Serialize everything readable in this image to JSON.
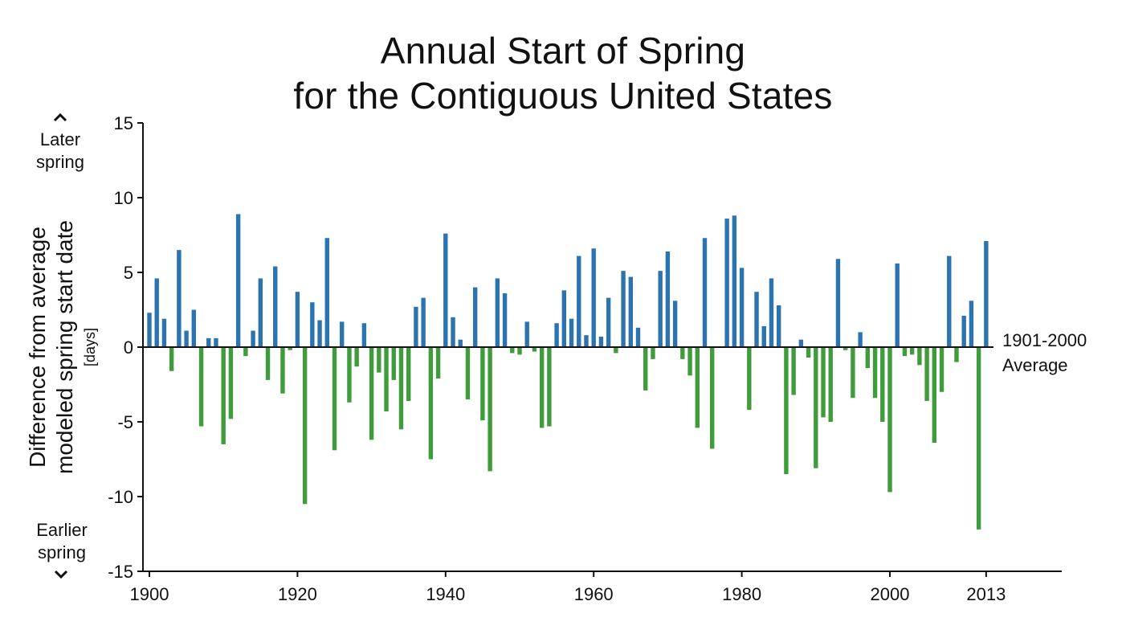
{
  "chart_data": {
    "type": "bar",
    "title_line1": "Annual Start of Spring",
    "title_line2": "for the Contiguous United States",
    "ylabel_line1": "Difference from average",
    "ylabel_line2": "modeled spring start date",
    "yunit": "[days]",
    "later_label_line1": "Later",
    "later_label_line2": "spring",
    "earlier_label_line1": "Earlier",
    "earlier_label_line2": "spring",
    "baseline_label_line1": "1901-2000",
    "baseline_label_line2": "Average",
    "ylim": [
      -15,
      15
    ],
    "xlim": [
      1900,
      2023
    ],
    "y_ticks": [
      15,
      10,
      5,
      0,
      -5,
      -10,
      -15
    ],
    "y_tick_labels": [
      "15",
      "10",
      "5",
      "0",
      "-5",
      "-10",
      "-15"
    ],
    "x_ticks": [
      1900,
      1920,
      1940,
      1960,
      1980,
      2000,
      2013
    ],
    "x_tick_labels": [
      "1900",
      "1920",
      "1940",
      "1960",
      "1980",
      "2000",
      "2013"
    ],
    "colors": {
      "later": "#2b74b0",
      "earlier": "#3f9c3a"
    },
    "grid": false,
    "x": [
      1900,
      1901,
      1902,
      1903,
      1904,
      1905,
      1906,
      1907,
      1908,
      1909,
      1910,
      1911,
      1912,
      1913,
      1914,
      1915,
      1916,
      1917,
      1918,
      1919,
      1920,
      1921,
      1922,
      1923,
      1924,
      1925,
      1926,
      1927,
      1928,
      1929,
      1930,
      1931,
      1932,
      1933,
      1934,
      1935,
      1936,
      1937,
      1938,
      1939,
      1940,
      1941,
      1942,
      1943,
      1944,
      1945,
      1946,
      1947,
      1948,
      1949,
      1950,
      1951,
      1952,
      1953,
      1954,
      1955,
      1956,
      1957,
      1958,
      1959,
      1960,
      1961,
      1962,
      1963,
      1964,
      1965,
      1966,
      1967,
      1968,
      1969,
      1970,
      1971,
      1972,
      1973,
      1974,
      1975,
      1976,
      1977,
      1978,
      1979,
      1980,
      1981,
      1982,
      1983,
      1984,
      1985,
      1986,
      1987,
      1988,
      1989,
      1990,
      1991,
      1992,
      1993,
      1994,
      1995,
      1996,
      1997,
      1998,
      1999,
      2000,
      2001,
      2002,
      2003,
      2004,
      2005,
      2006,
      2007,
      2008,
      2009,
      2010,
      2011,
      2012,
      2013
    ],
    "values": [
      2.3,
      4.6,
      1.9,
      -1.6,
      6.5,
      1.1,
      2.5,
      -5.3,
      0.6,
      0.6,
      -6.5,
      -4.8,
      8.9,
      -0.6,
      1.1,
      4.6,
      -2.2,
      5.4,
      -3.1,
      -0.2,
      3.7,
      -10.5,
      3.0,
      1.8,
      7.3,
      -6.9,
      1.7,
      -3.7,
      -1.3,
      1.6,
      -6.2,
      -1.7,
      -4.3,
      -2.2,
      -5.5,
      -3.6,
      2.7,
      3.3,
      -7.5,
      -2.1,
      7.6,
      2.0,
      0.5,
      -3.5,
      4.0,
      -4.9,
      -8.3,
      4.6,
      3.6,
      -0.4,
      -0.5,
      1.7,
      -0.3,
      -5.4,
      -5.3,
      1.6,
      3.8,
      1.9,
      6.1,
      0.8,
      6.6,
      0.7,
      3.3,
      -0.4,
      5.1,
      4.7,
      1.3,
      -2.9,
      -0.8,
      5.1,
      6.4,
      3.1,
      -0.8,
      -1.9,
      -5.4,
      7.3,
      -6.8,
      0,
      8.6,
      8.8,
      5.3,
      -4.2,
      3.7,
      1.4,
      4.6,
      2.8,
      -8.5,
      -3.2,
      0.5,
      -0.7,
      -8.1,
      -4.7,
      -5.0,
      5.9,
      -0.2,
      -3.4,
      1.0,
      -1.4,
      -3.4,
      -5.0,
      -9.7,
      5.6,
      -0.6,
      -0.5,
      -1.2,
      -3.6,
      -6.4,
      -3.0,
      6.1,
      -1.0,
      2.1,
      3.1,
      -12.2,
      7.1
    ]
  }
}
